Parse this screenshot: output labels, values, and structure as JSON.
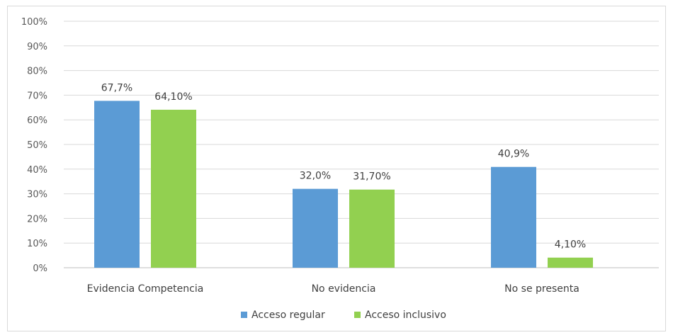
{
  "chart_data": {
    "type": "bar",
    "title": "",
    "xlabel": "",
    "ylabel": "",
    "ylim": [
      0,
      100
    ],
    "yticks": [
      0,
      10,
      20,
      30,
      40,
      50,
      60,
      70,
      80,
      90,
      100
    ],
    "ytick_labels": [
      "0%",
      "10%",
      "20%",
      "30%",
      "40%",
      "50%",
      "60%",
      "70%",
      "80%",
      "90%",
      "100%"
    ],
    "grid": true,
    "legend_position": "bottom",
    "categories": [
      "Evidencia Competencia",
      "No evidencia",
      "No se presenta"
    ],
    "series": [
      {
        "name": "Acceso regular",
        "color": "#5b9bd5",
        "values": [
          67.7,
          32.0,
          40.9
        ],
        "labels": [
          "67,7%",
          "32,0%",
          "40,9%"
        ]
      },
      {
        "name": "Acceso inclusivo",
        "color": "#92d050",
        "values": [
          64.1,
          31.7,
          4.1
        ],
        "labels": [
          "64,10%",
          "31,70%",
          "4,10%"
        ]
      }
    ]
  }
}
